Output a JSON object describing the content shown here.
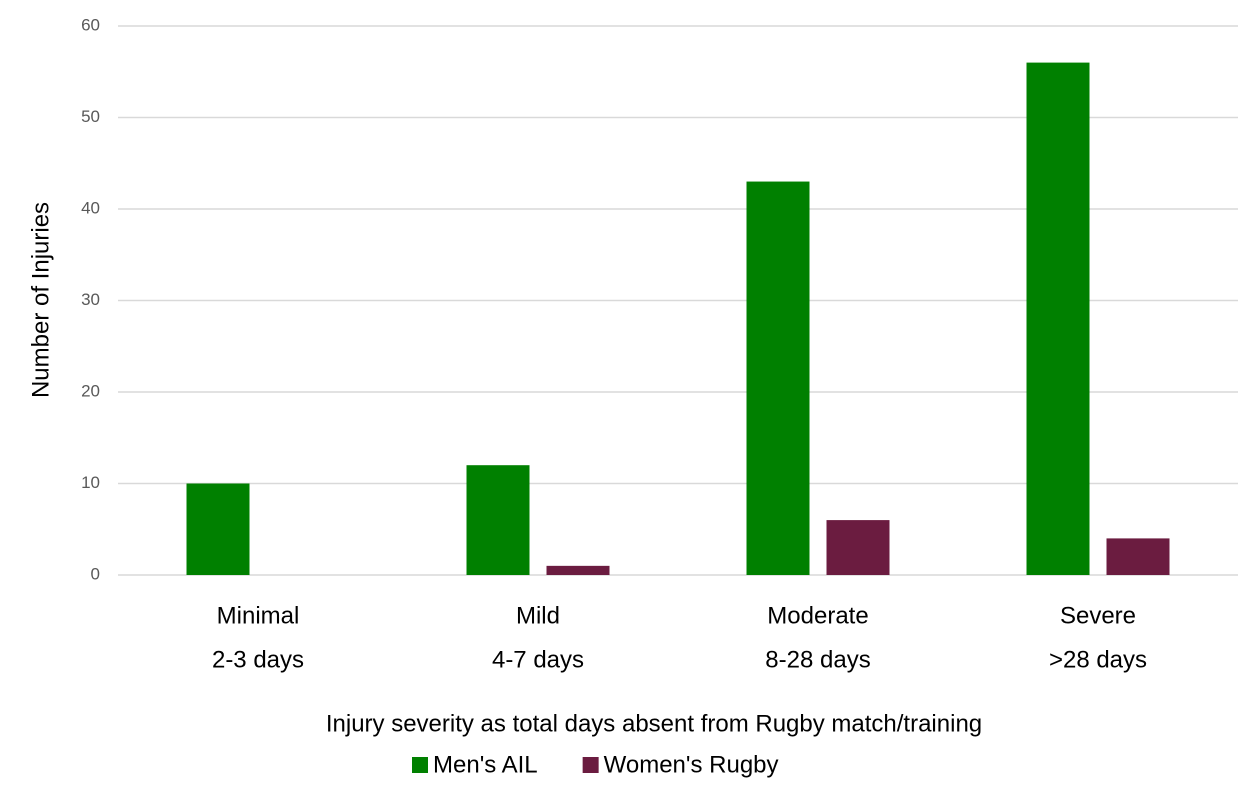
{
  "chart_data": {
    "type": "bar",
    "categories": [
      [
        "Minimal",
        "2-3 days"
      ],
      [
        "Mild",
        "4-7 days"
      ],
      [
        "Moderate",
        "8-28 days"
      ],
      [
        "Severe",
        ">28 days"
      ]
    ],
    "series": [
      {
        "name": "Men's AIL",
        "color": "#008000",
        "values": [
          10,
          12,
          43,
          56
        ]
      },
      {
        "name": "Women's Rugby",
        "color": "#6b1c40",
        "values": [
          0,
          1,
          6,
          4
        ]
      }
    ],
    "xlabel": "Injury severity as total days absent from Rugby match/training",
    "ylabel": "Number of Injuries",
    "ylim": [
      0,
      60
    ],
    "yticks": [
      0,
      10,
      20,
      30,
      40,
      50,
      60
    ],
    "grid": true,
    "legend": "bottom"
  }
}
